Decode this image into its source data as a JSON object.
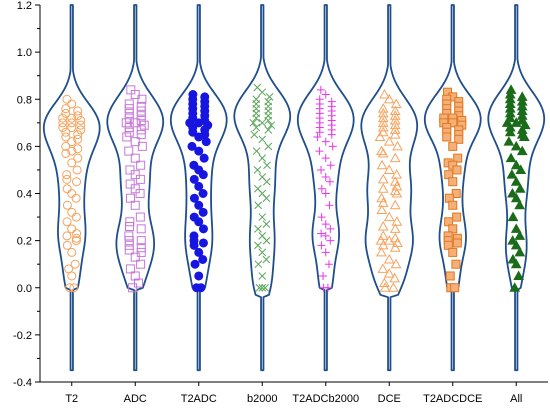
{
  "chart_data": {
    "type": "violin",
    "title": "",
    "xlabel": "",
    "ylabel": "",
    "ylim": [
      -0.4,
      1.2
    ],
    "yticks": [
      "-0.4",
      "-0.2",
      "0.0",
      "0.2",
      "0.4",
      "0.6",
      "0.8",
      "1.0",
      "1.2"
    ],
    "grid": false,
    "violin_color": "#1f4e8c",
    "categories": [
      "T2",
      "ADC",
      "T2ADC",
      "b2000",
      "T2ADCb2000",
      "DCE",
      "T2ADCDCE",
      "All"
    ],
    "series": [
      {
        "marker": "circle-open",
        "color": "#f5a25d",
        "fill": "none",
        "violin": {
          "min": -0.35,
          "max": 1.2,
          "lower_neck": 0.05,
          "upper_neck": 0.95,
          "mode": 0.68
        },
        "values": [
          0.8,
          0.78,
          0.76,
          0.75,
          0.74,
          0.73,
          0.72,
          0.72,
          0.71,
          0.7,
          0.7,
          0.69,
          0.68,
          0.68,
          0.67,
          0.66,
          0.65,
          0.64,
          0.63,
          0.62,
          0.6,
          0.59,
          0.58,
          0.57,
          0.55,
          0.53,
          0.5,
          0.48,
          0.46,
          0.45,
          0.42,
          0.4,
          0.38,
          0.35,
          0.32,
          0.3,
          0.28,
          0.25,
          0.23,
          0.22,
          0.21,
          0.2,
          0.18,
          0.15,
          0.1,
          0.08,
          0.05,
          0.0,
          0.0
        ]
      },
      {
        "marker": "square-open",
        "color": "#c678d6",
        "fill": "none",
        "violin": {
          "min": -0.35,
          "max": 1.2,
          "lower_neck": 0.05,
          "upper_neck": 0.95,
          "mode": 0.68
        },
        "values": [
          0.84,
          0.82,
          0.8,
          0.78,
          0.77,
          0.76,
          0.75,
          0.74,
          0.73,
          0.72,
          0.71,
          0.7,
          0.7,
          0.69,
          0.68,
          0.67,
          0.66,
          0.65,
          0.64,
          0.62,
          0.6,
          0.58,
          0.55,
          0.52,
          0.5,
          0.48,
          0.46,
          0.44,
          0.42,
          0.4,
          0.38,
          0.35,
          0.3,
          0.28,
          0.26,
          0.25,
          0.22,
          0.2,
          0.2,
          0.18,
          0.17,
          0.16,
          0.15,
          0.13,
          0.1,
          0.08,
          0.05,
          0.02,
          0.0
        ]
      },
      {
        "marker": "circle-filled",
        "color": "#1616e0",
        "fill": "#1616e0",
        "violin": {
          "min": -0.35,
          "max": 1.2,
          "lower_neck": 0.05,
          "upper_neck": 0.95,
          "mode": 0.7
        },
        "values": [
          0.82,
          0.81,
          0.8,
          0.79,
          0.78,
          0.77,
          0.76,
          0.75,
          0.74,
          0.73,
          0.72,
          0.71,
          0.7,
          0.7,
          0.69,
          0.68,
          0.67,
          0.66,
          0.65,
          0.64,
          0.62,
          0.6,
          0.58,
          0.55,
          0.52,
          0.5,
          0.48,
          0.46,
          0.43,
          0.4,
          0.38,
          0.35,
          0.32,
          0.3,
          0.28,
          0.25,
          0.22,
          0.2,
          0.19,
          0.18,
          0.15,
          0.12,
          0.1,
          0.05,
          0.0,
          0.0
        ]
      },
      {
        "marker": "x",
        "color": "#5aa55a",
        "fill": "none",
        "violin": {
          "min": -0.35,
          "max": 1.2,
          "lower_neck": 0.02,
          "upper_neck": 0.95,
          "mode": 0.68
        },
        "values": [
          0.85,
          0.83,
          0.81,
          0.8,
          0.79,
          0.78,
          0.77,
          0.76,
          0.75,
          0.74,
          0.73,
          0.72,
          0.71,
          0.7,
          0.7,
          0.69,
          0.68,
          0.67,
          0.65,
          0.63,
          0.6,
          0.58,
          0.55,
          0.52,
          0.5,
          0.47,
          0.45,
          0.42,
          0.4,
          0.38,
          0.35,
          0.3,
          0.27,
          0.25,
          0.22,
          0.2,
          0.18,
          0.15,
          0.12,
          0.1,
          0.05,
          0.0,
          0.0,
          0.0
        ]
      },
      {
        "marker": "plus",
        "color": "#e838e8",
        "fill": "none",
        "violin": {
          "min": -0.35,
          "max": 1.2,
          "lower_neck": 0.05,
          "upper_neck": 0.95,
          "mode": 0.68
        },
        "values": [
          0.84,
          0.82,
          0.8,
          0.79,
          0.78,
          0.77,
          0.76,
          0.75,
          0.74,
          0.73,
          0.72,
          0.71,
          0.7,
          0.69,
          0.68,
          0.67,
          0.66,
          0.65,
          0.64,
          0.62,
          0.6,
          0.58,
          0.55,
          0.52,
          0.5,
          0.47,
          0.45,
          0.42,
          0.4,
          0.35,
          0.3,
          0.27,
          0.25,
          0.23,
          0.22,
          0.2,
          0.18,
          0.15,
          0.1,
          0.05,
          0.0,
          0.0
        ]
      },
      {
        "marker": "triangle-open",
        "color": "#f5a25d",
        "fill": "none",
        "violin": {
          "min": -0.35,
          "max": 1.2,
          "lower_neck": 0.02,
          "upper_neck": 0.95,
          "mode": 0.65
        },
        "values": [
          0.82,
          0.8,
          0.78,
          0.76,
          0.75,
          0.74,
          0.73,
          0.72,
          0.71,
          0.7,
          0.69,
          0.68,
          0.67,
          0.66,
          0.65,
          0.64,
          0.62,
          0.6,
          0.58,
          0.57,
          0.55,
          0.52,
          0.5,
          0.48,
          0.46,
          0.45,
          0.43,
          0.42,
          0.41,
          0.4,
          0.38,
          0.36,
          0.35,
          0.33,
          0.3,
          0.28,
          0.26,
          0.25,
          0.22,
          0.21,
          0.2,
          0.2,
          0.19,
          0.18,
          0.17,
          0.15,
          0.12,
          0.1,
          0.08,
          0.06,
          0.04,
          0.02,
          0.0,
          0.0
        ]
      },
      {
        "marker": "square-filled",
        "color": "#e07820",
        "fill": "#f5b07a",
        "violin": {
          "min": -0.35,
          "max": 1.2,
          "lower_neck": 0.05,
          "upper_neck": 0.95,
          "mode": 0.68
        },
        "values": [
          0.83,
          0.81,
          0.8,
          0.79,
          0.78,
          0.77,
          0.76,
          0.75,
          0.74,
          0.73,
          0.72,
          0.72,
          0.71,
          0.7,
          0.7,
          0.69,
          0.68,
          0.67,
          0.66,
          0.65,
          0.64,
          0.63,
          0.6,
          0.55,
          0.53,
          0.52,
          0.5,
          0.48,
          0.45,
          0.4,
          0.38,
          0.35,
          0.3,
          0.28,
          0.25,
          0.22,
          0.21,
          0.2,
          0.19,
          0.18,
          0.15,
          0.1,
          0.05,
          0.0,
          0.0
        ]
      },
      {
        "marker": "triangle-filled",
        "color": "#1a6b1a",
        "fill": "#1a6b1a",
        "violin": {
          "min": -0.35,
          "max": 1.2,
          "lower_neck": 0.05,
          "upper_neck": 0.95,
          "mode": 0.68
        },
        "values": [
          0.84,
          0.82,
          0.81,
          0.8,
          0.79,
          0.78,
          0.77,
          0.76,
          0.75,
          0.74,
          0.73,
          0.72,
          0.71,
          0.7,
          0.7,
          0.69,
          0.68,
          0.67,
          0.66,
          0.65,
          0.64,
          0.62,
          0.6,
          0.58,
          0.55,
          0.52,
          0.5,
          0.48,
          0.45,
          0.42,
          0.4,
          0.38,
          0.35,
          0.3,
          0.25,
          0.22,
          0.2,
          0.18,
          0.15,
          0.12,
          0.1,
          0.05,
          0.0
        ]
      }
    ]
  }
}
